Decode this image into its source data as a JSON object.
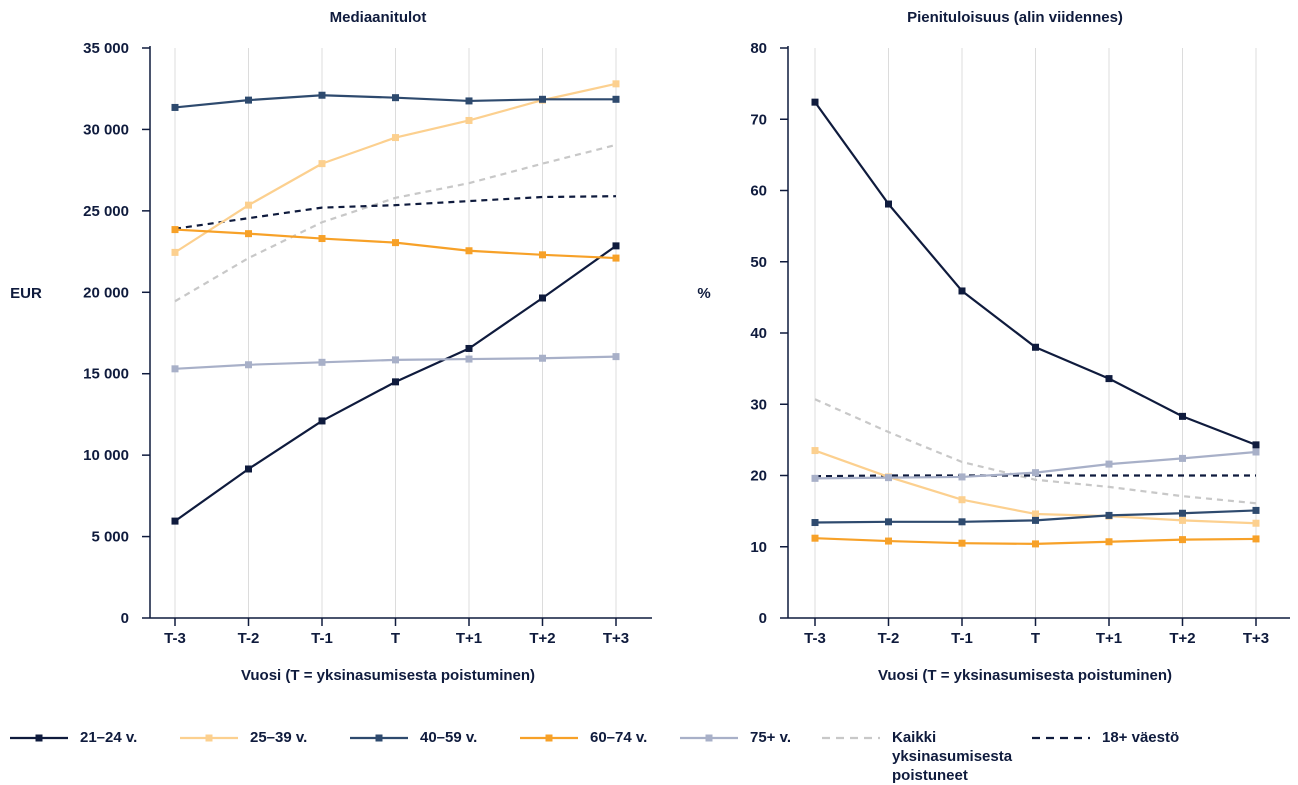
{
  "chart_data": [
    {
      "type": "line",
      "title": "Mediaanitulot",
      "xlabel": "Vuosi (T = yksinasumisesta poistuminen)",
      "ylabel": "EUR",
      "categories": [
        "T-3",
        "T-2",
        "T-1",
        "T",
        "T+1",
        "T+2",
        "T+3"
      ],
      "ylim": [
        0,
        35000
      ],
      "yticks": [
        0,
        5000,
        10000,
        15000,
        20000,
        25000,
        30000,
        35000
      ],
      "ytick_labels": [
        "0",
        "5 000",
        "10 000",
        "15 000",
        "20 000",
        "25 000",
        "30 000",
        "35 000"
      ],
      "grid": "vertical",
      "series": [
        {
          "name": "21–24 v.",
          "color": "#0f1b3d",
          "style": "solid-marker",
          "values": [
            5950,
            9150,
            12100,
            14500,
            16550,
            19650,
            22850
          ]
        },
        {
          "name": "25–39 v.",
          "color": "#fcd08f",
          "style": "solid-marker",
          "values": [
            22450,
            25350,
            27900,
            29500,
            30550,
            31800,
            32800
          ]
        },
        {
          "name": "40–59 v.",
          "color": "#2e4a6e",
          "style": "solid-marker",
          "values": [
            31350,
            31800,
            32100,
            31950,
            31750,
            31850,
            31850
          ]
        },
        {
          "name": "60–74 v.",
          "color": "#f7a128",
          "style": "solid-marker",
          "values": [
            23850,
            23600,
            23300,
            23050,
            22550,
            22300,
            22100
          ]
        },
        {
          "name": "75+ v.",
          "color": "#a8b0c8",
          "style": "solid-marker",
          "values": [
            15300,
            15550,
            15700,
            15850,
            15900,
            15950,
            16050
          ]
        },
        {
          "name": "Kaikki yksinasumisesta poistuneet",
          "color": "#c8c8c8",
          "style": "dashed",
          "values": [
            19450,
            22100,
            24300,
            25800,
            26700,
            27900,
            29050
          ]
        },
        {
          "name": "18+ väestö",
          "color": "#0f1b3d",
          "style": "dashed",
          "values": [
            23900,
            24550,
            25200,
            25350,
            25600,
            25850,
            25900
          ]
        }
      ]
    },
    {
      "type": "line",
      "title": "Pienituloisuus (alin viidennes)",
      "xlabel": "Vuosi (T = yksinasumisesta poistuminen)",
      "ylabel": "%",
      "categories": [
        "T-3",
        "T-2",
        "T-1",
        "T",
        "T+1",
        "T+2",
        "T+3"
      ],
      "ylim": [
        0,
        80
      ],
      "yticks": [
        0,
        10,
        20,
        30,
        40,
        50,
        60,
        70,
        80
      ],
      "ytick_labels": [
        "0",
        "10",
        "20",
        "30",
        "40",
        "50",
        "60",
        "70",
        "80"
      ],
      "grid": "vertical",
      "series": [
        {
          "name": "21–24 v.",
          "color": "#0f1b3d",
          "style": "solid-marker",
          "values": [
            72.4,
            58.1,
            45.9,
            38.0,
            33.6,
            28.3,
            24.3
          ]
        },
        {
          "name": "25–39 v.",
          "color": "#fcd08f",
          "style": "solid-marker",
          "values": [
            23.5,
            19.8,
            16.6,
            14.6,
            14.3,
            13.7,
            13.3
          ]
        },
        {
          "name": "40–59 v.",
          "color": "#2e4a6e",
          "style": "solid-marker",
          "values": [
            13.4,
            13.5,
            13.5,
            13.7,
            14.4,
            14.7,
            15.1
          ]
        },
        {
          "name": "60–74 v.",
          "color": "#f7a128",
          "style": "solid-marker",
          "values": [
            11.2,
            10.8,
            10.5,
            10.4,
            10.7,
            11.0,
            11.1
          ]
        },
        {
          "name": "75+ v.",
          "color": "#a8b0c8",
          "style": "solid-marker",
          "values": [
            19.6,
            19.7,
            19.8,
            20.4,
            21.6,
            22.4,
            23.3
          ]
        },
        {
          "name": "Kaikki yksinasumisesta poistuneet",
          "color": "#c8c8c8",
          "style": "dashed",
          "values": [
            30.7,
            26.1,
            21.9,
            19.4,
            18.4,
            17.1,
            16.1
          ]
        },
        {
          "name": "18+ väestö",
          "color": "#0f1b3d",
          "style": "dashed",
          "values": [
            19.9,
            20.0,
            20.0,
            20.0,
            20.0,
            20.0,
            20.0
          ]
        }
      ]
    }
  ],
  "legend": {
    "items": [
      {
        "label": "21–24 v.",
        "color": "#0f1b3d",
        "style": "solid-marker"
      },
      {
        "label": "25–39 v.",
        "color": "#fcd08f",
        "style": "solid-marker"
      },
      {
        "label": "40–59 v.",
        "color": "#2e4a6e",
        "style": "solid-marker"
      },
      {
        "label": "60–74 v.",
        "color": "#f7a128",
        "style": "solid-marker"
      },
      {
        "label": "75+ v.",
        "color": "#a8b0c8",
        "style": "solid-marker"
      },
      {
        "label": "Kaikki yksinasumisesta poistuneet",
        "color": "#c8c8c8",
        "style": "dashed"
      },
      {
        "label": "18+ väestö",
        "color": "#0f1b3d",
        "style": "dashed"
      }
    ]
  }
}
